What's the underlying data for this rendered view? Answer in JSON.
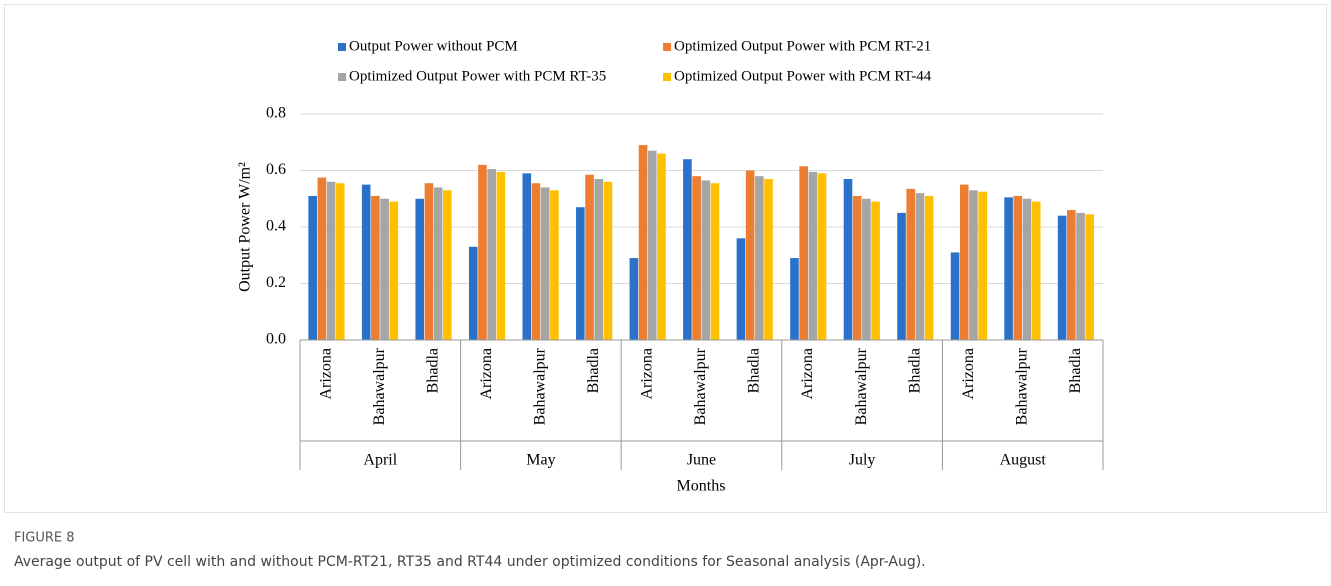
{
  "chart_data": {
    "type": "bar",
    "figure_label": "FIGURE 8",
    "caption": "Average output of PV cell with and without PCM-RT21, RT35 and RT44 under optimized conditions for Seasonal analysis (Apr-Aug).",
    "ylabel": "Output Power  W/m²",
    "xlabel": "Months",
    "categories": [
      "Arizona",
      "Bahawalpur",
      "Bhadla",
      "Arizona",
      "Bahawalpur",
      "Bhadla",
      "Arizona",
      "Bahawalpur",
      "Bhadla",
      "Arizona",
      "Bahawalpur",
      "Bhadla",
      "Arizona",
      "Bahawalpur",
      "Bhadla"
    ],
    "groups": [
      {
        "label": "April",
        "size": 3
      },
      {
        "label": "May",
        "size": 3
      },
      {
        "label": "June",
        "size": 3
      },
      {
        "label": "July",
        "size": 3
      },
      {
        "label": "August",
        "size": 3
      }
    ],
    "series": [
      {
        "name": "Output Power without PCM",
        "color": "#2a72c9",
        "values": [
          0.51,
          0.55,
          0.5,
          0.33,
          0.59,
          0.47,
          0.29,
          0.64,
          0.36,
          0.29,
          0.57,
          0.45,
          0.31,
          0.505,
          0.44
        ]
      },
      {
        "name": "Optimized Output Power with PCM RT-21",
        "color": "#ed7d31",
        "values": [
          0.575,
          0.51,
          0.555,
          0.62,
          0.555,
          0.585,
          0.69,
          0.58,
          0.6,
          0.615,
          0.51,
          0.535,
          0.55,
          0.51,
          0.46
        ]
      },
      {
        "name": "Optimized Output Power with PCM RT-35",
        "color": "#a5a5a5",
        "values": [
          0.56,
          0.5,
          0.54,
          0.605,
          0.54,
          0.57,
          0.67,
          0.565,
          0.58,
          0.595,
          0.5,
          0.52,
          0.53,
          0.5,
          0.45
        ]
      },
      {
        "name": "Optimized Output Power with PCM RT-44",
        "color": "#ffc000",
        "values": [
          0.555,
          0.49,
          0.53,
          0.595,
          0.53,
          0.56,
          0.66,
          0.555,
          0.57,
          0.59,
          0.49,
          0.51,
          0.525,
          0.49,
          0.445
        ]
      }
    ],
    "ylim": [
      0,
      0.8
    ],
    "yticks": [
      {
        "value": 0,
        "label": "0.0"
      },
      0.2,
      0.4,
      0.6,
      0.8
    ],
    "grid": true
  }
}
